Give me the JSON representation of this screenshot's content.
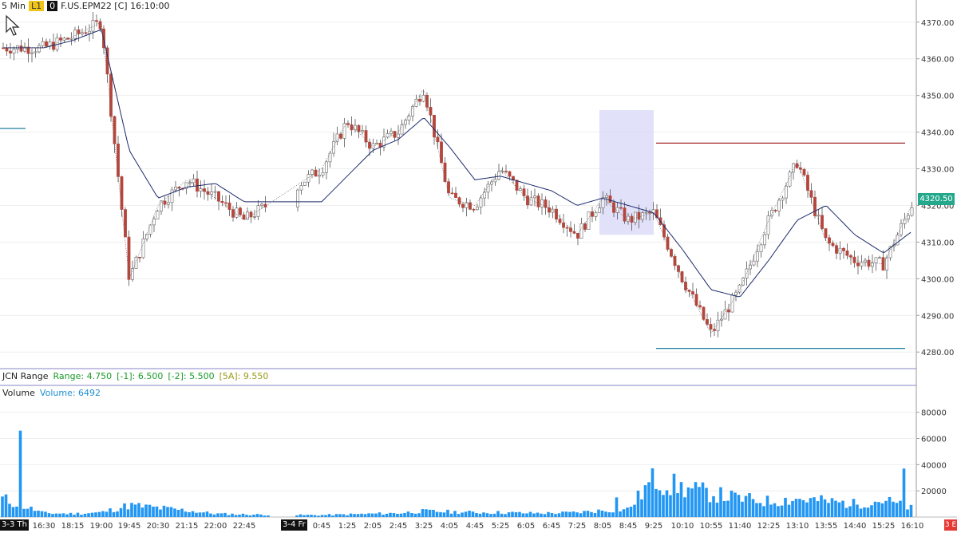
{
  "header": {
    "interval": "5 Min",
    "badge_l1": "L1",
    "badge_zero": "0",
    "symbol_line": "F.US.EPM22 [C] 16:10:00"
  },
  "price_tag": "4320.50",
  "jcn_panel": {
    "title": "JCN Range",
    "range": "Range: 4.750",
    "m1": "[-1]: 6.500",
    "m2": "[-2]: 5.500",
    "avg": "[5A]: 9.550"
  },
  "volume_panel": {
    "title": "Volume",
    "value": "Volume: 6492"
  },
  "date_chips": [
    "3-3 Th",
    "3-4 Fr"
  ],
  "corner_chip": "3 E",
  "colors": {
    "up_candle": "#ffffff",
    "down_candle": "#b5463c",
    "wick": "#555555",
    "ma_slow": "#1c2a6b",
    "volume_bar": "#2196f3",
    "resistance_line": "#a12b2b",
    "support_line": "#1d7fa0",
    "highlight_box": "#d9daf7",
    "price_tag": "#24a88c"
  },
  "chart_data": [
    {
      "type": "candlestick",
      "title": "F.US.EPM22 [C] 16:10:00",
      "interval": "5 Min",
      "ylim": [
        4277,
        4373
      ],
      "y_ticks": [
        "4370.00",
        "4360.00",
        "4350.00",
        "4340.00",
        "4330.00",
        "4320.00",
        "4310.00",
        "4300.00",
        "4290.00",
        "4280.00"
      ],
      "y_tick_values": [
        4370,
        4360,
        4350,
        4340,
        4330,
        4320,
        4310,
        4300,
        4290,
        4280
      ],
      "x_tick_labels": [
        "16:30",
        "18:15",
        "19:00",
        "19:45",
        "20:30",
        "21:15",
        "22:00",
        "22:45",
        "0:45",
        "1:25",
        "2:05",
        "2:45",
        "3:25",
        "4:05",
        "4:45",
        "5:25",
        "6:05",
        "6:45",
        "7:25",
        "8:05",
        "8:45",
        "9:25",
        "10:10",
        "10:55",
        "11:40",
        "12:25",
        "13:10",
        "13:55",
        "14:40",
        "15:25",
        "16:10"
      ],
      "last_price": 4320.5,
      "horizontal_lines": [
        {
          "name": "resistance",
          "y": 4337.0,
          "from": "9:25",
          "to": "16:10"
        },
        {
          "name": "support",
          "y": 4281.0,
          "from": "9:25",
          "to": "16:10"
        },
        {
          "name": "prior-level",
          "y": 4341.0,
          "from": "3-3 Th",
          "to": "16:30"
        }
      ],
      "highlight_box": {
        "from": "8:05",
        "to": "9:25",
        "y_from": 4312,
        "y_to": 4346
      },
      "series": [
        {
          "name": "close",
          "kind": "price",
          "x": [
            "16:30",
            "18:15",
            "19:00",
            "19:45",
            "20:30",
            "21:15",
            "22:00",
            "22:45",
            "0:45",
            "1:25",
            "2:05",
            "2:45",
            "3:25",
            "4:05",
            "4:45",
            "5:25",
            "6:05",
            "6:45",
            "7:25",
            "8:05",
            "8:45",
            "9:25",
            "10:10",
            "10:55",
            "11:40",
            "12:25",
            "13:10",
            "13:55",
            "14:40",
            "15:25",
            "16:10"
          ],
          "values": [
            4363,
            4366,
            4370,
            4300,
            4320,
            4327,
            4322,
            4316,
            4330,
            4343,
            4336,
            4340,
            4352,
            4322,
            4320,
            4330,
            4322,
            4319,
            4312,
            4322,
            4316,
            4318,
            4300,
            4285,
            4297,
            4316,
            4332,
            4310,
            4305,
            4304,
            4320.5
          ]
        },
        {
          "name": "moving-average",
          "kind": "ma",
          "x": [
            "16:30",
            "18:15",
            "19:00",
            "19:45",
            "20:30",
            "21:15",
            "22:00",
            "22:45",
            "0:45",
            "1:25",
            "2:05",
            "2:45",
            "3:25",
            "4:05",
            "4:45",
            "5:25",
            "6:05",
            "6:45",
            "7:25",
            "8:05",
            "8:45",
            "9:25",
            "10:10",
            "10:55",
            "11:40",
            "12:25",
            "13:10",
            "13:55",
            "14:40",
            "15:25",
            "16:10"
          ],
          "values": [
            4363,
            4365,
            4368,
            4335,
            4322,
            4325,
            4326,
            4321,
            4321,
            4328,
            4335,
            4338,
            4344,
            4336,
            4327,
            4328,
            4326,
            4324,
            4320,
            4322,
            4320,
            4318,
            4308,
            4297,
            4295,
            4305,
            4316,
            4320,
            4312,
            4307,
            4313
          ]
        }
      ]
    },
    {
      "type": "bar",
      "title": "Volume",
      "ylim": [
        0,
        92000
      ],
      "y_ticks": [
        "80000",
        "60000",
        "40000",
        "20000"
      ],
      "y_tick_values": [
        80000,
        60000,
        40000,
        20000
      ],
      "last_value": 6492,
      "x": [
        "3-3 Th",
        "16:30",
        "18:15",
        "19:00",
        "19:45",
        "20:30",
        "21:15",
        "22:00",
        "22:45",
        "3-4 Fr",
        "0:45",
        "1:25",
        "2:05",
        "2:45",
        "3:25",
        "4:05",
        "4:45",
        "5:25",
        "6:05",
        "6:45",
        "7:25",
        "8:05",
        "8:45",
        "9:25",
        "10:10",
        "10:55",
        "11:40",
        "12:25",
        "13:10",
        "13:55",
        "14:40",
        "15:25",
        "16:10"
      ],
      "values": [
        14000,
        3000,
        2500,
        3500,
        9000,
        7000,
        5000,
        2500,
        2000,
        1500,
        1500,
        2000,
        2500,
        3000,
        4500,
        4000,
        3500,
        3500,
        3000,
        3000,
        3500,
        5000,
        6000,
        29000,
        22000,
        18000,
        14000,
        12000,
        14000,
        12000,
        10000,
        13000,
        6492
      ]
    }
  ]
}
